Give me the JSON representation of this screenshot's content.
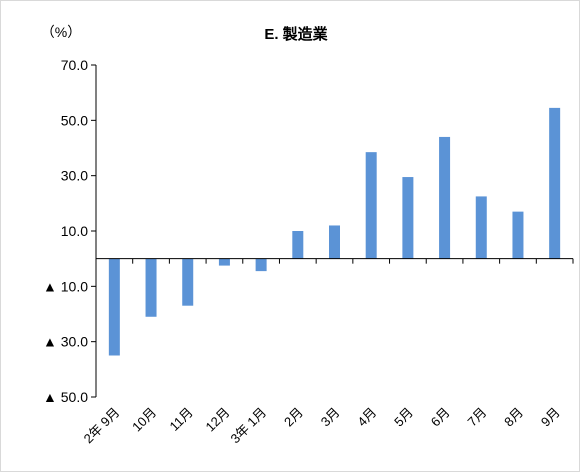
{
  "chart_data": {
    "type": "bar",
    "title": "E. 製造業",
    "unit_label": "（%）",
    "categories": [
      "2年 9月",
      "10月",
      "11月",
      "12月",
      "3年 1月",
      "2月",
      "3月",
      "4月",
      "5月",
      "6月",
      "7月",
      "8月",
      "9月"
    ],
    "series": [
      {
        "values": [
          -35.0,
          -21.0,
          -17.0,
          -2.5,
          -4.5,
          10.0,
          12.0,
          38.5,
          29.5,
          44.0,
          22.5,
          17.0,
          54.5
        ]
      }
    ],
    "ylim": [
      -50,
      70
    ],
    "yticks": [
      {
        "value": 70,
        "label": "70.0"
      },
      {
        "value": 50,
        "label": "50.0"
      },
      {
        "value": 30,
        "label": "30.0"
      },
      {
        "value": 10,
        "label": "10.0"
      },
      {
        "value": -10,
        "label": "▲ 10.0"
      },
      {
        "value": -30,
        "label": "▲ 30.0"
      },
      {
        "value": -50,
        "label": "▲ 50.0"
      }
    ],
    "bar_color": "#5b93d6",
    "grid": false,
    "legend": false
  }
}
